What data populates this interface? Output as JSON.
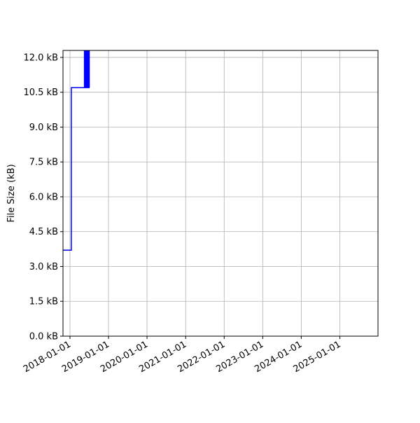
{
  "chart_data": {
    "type": "line",
    "title": "",
    "xlabel": "",
    "ylabel": "File Size (kB)",
    "xlim": [
      "2017-10-27",
      "2025-12-28"
    ],
    "ylim": [
      0,
      12.3
    ],
    "grid": true,
    "line_color": "#0000ff",
    "step": true,
    "x_ticks": [
      "2018-01-01",
      "2019-01-01",
      "2020-01-01",
      "2021-01-01",
      "2022-01-01",
      "2023-01-01",
      "2024-01-01",
      "2025-01-01"
    ],
    "y_ticks": [
      0,
      1.5,
      3.0,
      4.5,
      6.0,
      7.5,
      9.0,
      10.5,
      12.0
    ],
    "y_tick_labels": [
      "0.0 kB",
      "1.5 kB",
      "3.0 kB",
      "4.5 kB",
      "6.0 kB",
      "7.5 kB",
      "9.0 kB",
      "10.5 kB",
      "12.0 kB"
    ],
    "series": [
      {
        "x": [
          "2017-10-27",
          "2018-01-14",
          "2018-05-18",
          "2018-05-22",
          "2018-05-25",
          "2018-05-29",
          "2018-06-01",
          "2018-06-05",
          "2018-06-08",
          "2018-06-12",
          "2018-06-15",
          "2018-06-19",
          "2018-06-22",
          "2018-06-26",
          "2018-06-29",
          "2018-07-03",
          "2018-07-06"
        ],
        "y": [
          3.7,
          10.7,
          13.0,
          10.7,
          13.0,
          10.7,
          13.0,
          10.7,
          13.0,
          10.7,
          13.0,
          10.7,
          13.0,
          10.7,
          13.0,
          10.7,
          10.7
        ]
      }
    ]
  }
}
